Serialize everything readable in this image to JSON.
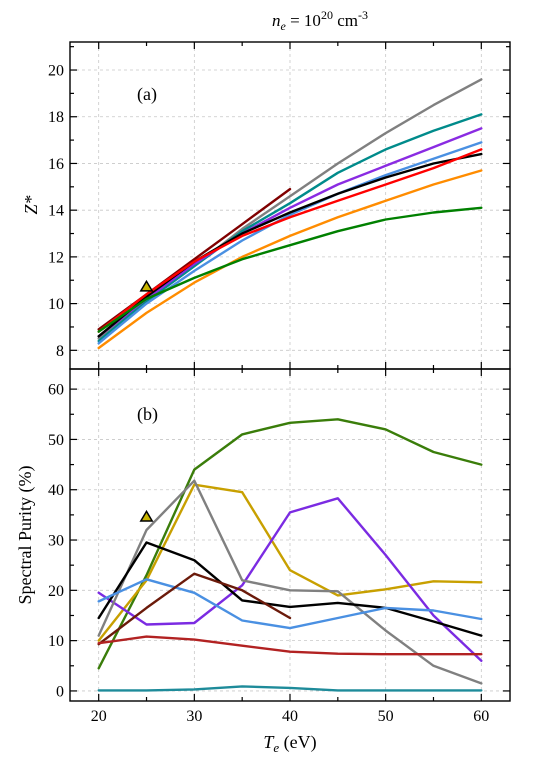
{
  "figure": {
    "title_base": "n",
    "title_sub": "e",
    "title_eq": " = 10",
    "title_sup": "20",
    "title_unit": " cm",
    "title_unit_sup": "-3",
    "x_label_base": "T",
    "x_label_sub": "e",
    "x_label_unit": " (eV)"
  },
  "chart_data": [
    {
      "type": "line",
      "panel_label": "(a)",
      "ylabel": "Z*",
      "xlim": [
        17,
        63
      ],
      "ylim": [
        7.2,
        21.2
      ],
      "xticks": [
        20,
        30,
        40,
        50,
        60
      ],
      "yticks": [
        8,
        10,
        12,
        14,
        16,
        18,
        20
      ],
      "grid": true,
      "series": [
        {
          "color": "#800000",
          "x": [
            20,
            25,
            30,
            35,
            40
          ],
          "y": [
            8.9,
            10.4,
            11.9,
            13.4,
            14.9
          ]
        },
        {
          "color": "#808080",
          "x": [
            20,
            25,
            30,
            35,
            40,
            45,
            50,
            55,
            60
          ],
          "y": [
            8.5,
            10.1,
            11.6,
            13.2,
            14.6,
            16.0,
            17.3,
            18.5,
            19.6
          ]
        },
        {
          "color": "#008B8B",
          "x": [
            20,
            25,
            30,
            35,
            40,
            45,
            50,
            55,
            60
          ],
          "y": [
            8.4,
            10.1,
            11.6,
            13.1,
            14.3,
            15.6,
            16.6,
            17.4,
            18.1
          ]
        },
        {
          "color": "#8A2BE2",
          "x": [
            20,
            25,
            30,
            35,
            40,
            45,
            50,
            55,
            60
          ],
          "y": [
            8.6,
            10.2,
            11.7,
            13.0,
            14.1,
            15.1,
            15.9,
            16.7,
            17.5
          ]
        },
        {
          "color": "#4A90E2",
          "x": [
            20,
            25,
            30,
            35,
            40,
            45,
            50,
            55,
            60
          ],
          "y": [
            8.3,
            10.0,
            11.4,
            12.7,
            13.8,
            14.7,
            15.5,
            16.2,
            16.9
          ]
        },
        {
          "color": "#000000",
          "x": [
            20,
            25,
            30,
            35,
            40,
            45,
            50,
            55,
            60
          ],
          "y": [
            8.6,
            10.3,
            11.8,
            13.0,
            13.9,
            14.7,
            15.4,
            16.0,
            16.4
          ]
        },
        {
          "color": "#FF0000",
          "x": [
            20,
            25,
            30,
            35,
            40,
            45,
            50,
            55,
            60
          ],
          "y": [
            8.8,
            10.4,
            11.8,
            12.9,
            13.7,
            14.4,
            15.1,
            15.8,
            16.6
          ]
        },
        {
          "color": "#FF8C00",
          "x": [
            20,
            25,
            30,
            35,
            40,
            45,
            50,
            55,
            60
          ],
          "y": [
            8.1,
            9.6,
            10.9,
            12.0,
            12.9,
            13.7,
            14.4,
            15.1,
            15.7
          ]
        },
        {
          "color": "#008000",
          "x": [
            20,
            25,
            30,
            35,
            40,
            45,
            50,
            55,
            60
          ],
          "y": [
            8.8,
            10.2,
            11.1,
            11.9,
            12.5,
            13.1,
            13.6,
            13.9,
            14.1
          ]
        }
      ],
      "marker": {
        "shape": "triangle",
        "x": 25,
        "y": 10.7,
        "fill": "#C8B400",
        "stroke": "#000000"
      }
    },
    {
      "type": "line",
      "panel_label": "(b)",
      "ylabel": "Spectral Purity (%)",
      "xlim": [
        17,
        63
      ],
      "ylim": [
        -2,
        64
      ],
      "xticks": [
        20,
        30,
        40,
        50,
        60
      ],
      "xticklabels": [
        "20",
        "30",
        "40",
        "50",
        "60"
      ],
      "yticks": [
        0,
        10,
        20,
        30,
        40,
        50,
        60
      ],
      "grid": true,
      "series": [
        {
          "color": "#3A7D0A",
          "x": [
            20,
            25,
            30,
            35,
            40,
            45,
            50,
            55,
            60
          ],
          "y": [
            4.5,
            23.0,
            44.0,
            51.0,
            53.3,
            54.0,
            52.0,
            47.5,
            45.0
          ]
        },
        {
          "color": "#C8A000",
          "x": [
            20,
            25,
            30,
            35,
            40,
            45,
            50,
            55,
            60
          ],
          "y": [
            10.0,
            22.0,
            41.0,
            39.5,
            24.0,
            19.0,
            20.2,
            21.8,
            21.6
          ]
        },
        {
          "color": "#7B2BE2",
          "x": [
            20,
            25,
            30,
            35,
            40,
            45,
            50,
            55,
            60
          ],
          "y": [
            19.5,
            13.2,
            13.5,
            21.0,
            35.5,
            38.3,
            27.0,
            15.0,
            6.0
          ]
        },
        {
          "color": "#808080",
          "x": [
            20,
            25,
            30,
            35,
            40,
            45,
            50,
            55,
            60
          ],
          "y": [
            11.0,
            32.0,
            41.8,
            22.0,
            20.0,
            19.8,
            12.0,
            5.0,
            1.5
          ]
        },
        {
          "color": "#000000",
          "x": [
            20,
            25,
            30,
            35,
            40,
            45,
            50,
            55,
            60
          ],
          "y": [
            14.5,
            29.5,
            26.0,
            18.0,
            16.7,
            17.5,
            16.5,
            13.8,
            11.0
          ]
        },
        {
          "color": "#4A90E2",
          "x": [
            20,
            25,
            30,
            35,
            40,
            45,
            50,
            55,
            60
          ],
          "y": [
            17.8,
            22.2,
            19.5,
            14.0,
            12.5,
            14.5,
            16.5,
            16.0,
            14.3
          ]
        },
        {
          "color": "#6B1A0A",
          "x": [
            20,
            25,
            30,
            35,
            40
          ],
          "y": [
            9.3,
            16.5,
            23.3,
            20.0,
            14.5
          ]
        },
        {
          "color": "#B22222",
          "x": [
            20,
            25,
            30,
            35,
            40,
            45,
            50,
            55,
            60
          ],
          "y": [
            9.5,
            10.8,
            10.2,
            9.0,
            7.8,
            7.4,
            7.3,
            7.3,
            7.3
          ]
        },
        {
          "color": "#1E8B9A",
          "x": [
            20,
            25,
            30,
            35,
            40,
            45,
            50,
            55,
            60
          ],
          "y": [
            0.1,
            0.1,
            0.3,
            0.9,
            0.6,
            0.1,
            0.1,
            0.1,
            0.1
          ]
        }
      ],
      "marker": {
        "shape": "triangle",
        "x": 25,
        "y": 34.5,
        "fill": "#C8B400",
        "stroke": "#000000"
      }
    }
  ]
}
